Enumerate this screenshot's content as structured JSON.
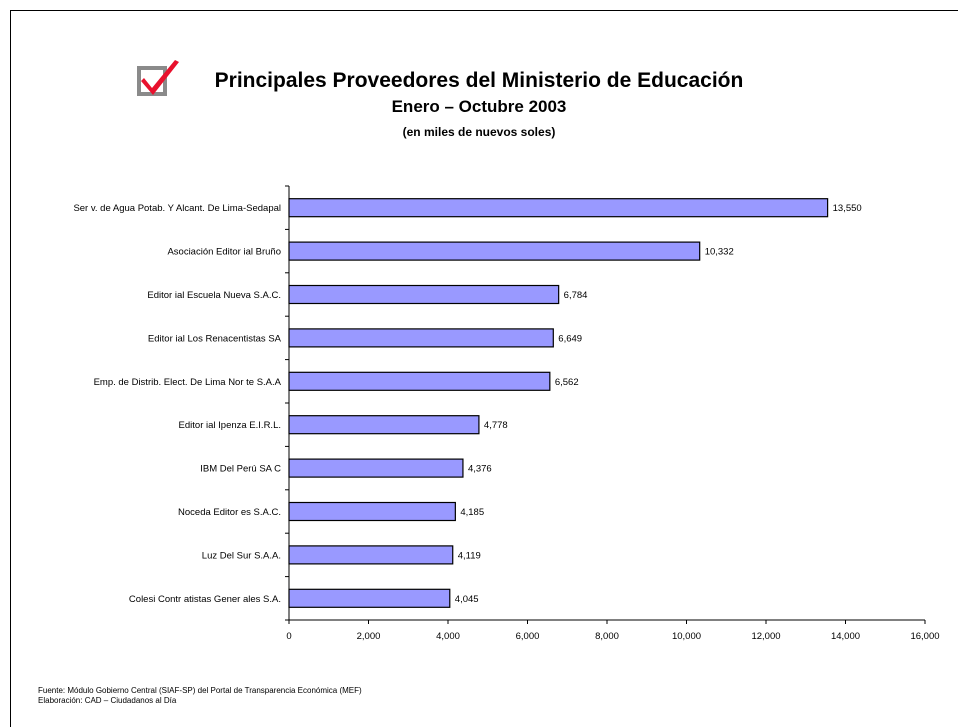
{
  "header": {
    "title": "Principales Proveedores del Ministerio de Educación",
    "subtitle": "Enero – Octubre 2003",
    "units": "(en miles de nuevos soles)",
    "icon": "checkbox-check-icon"
  },
  "footer": {
    "source": "Fuente: Módulo Gobierno Central (SIAF-SP) del Portal de Transparencia Económica (MEF)",
    "credit": "Elaboración: CAD – Ciudadanos al Día"
  },
  "colors": {
    "bar_fill": "#9999ff",
    "bar_stroke": "#000000",
    "check_red": "#e8112d",
    "box_gray": "#8a8a8a"
  },
  "chart_data": {
    "type": "bar",
    "orientation": "horizontal",
    "title": "Principales Proveedores del Ministerio de Educación",
    "categories": [
      "Ser v. de Agua Potab. Y Alcant. De Lima-Sedapal",
      "Asociación Editor ial Bruño",
      "Editor ial Escuela Nueva S.A.C.",
      "Editor ial Los Renacentistas SA",
      "Emp. de Distrib. Elect. De Lima Nor te S.A.A",
      "Editor ial Ipenza E.I.R.L.",
      "IBM Del Perú SA C",
      "Noceda Editor es S.A.C.",
      "Luz Del Sur S.A.A.",
      "Colesi Contr atistas Gener ales S.A."
    ],
    "values": [
      13550,
      10332,
      6784,
      6649,
      6562,
      4778,
      4376,
      4185,
      4119,
      4045
    ],
    "value_labels": [
      "13,550",
      "10,332",
      "6,784",
      "6,649",
      "6,562",
      "4,778",
      "4,376",
      "4,185",
      "4,119",
      "4,045"
    ],
    "xlim": [
      0,
      16000
    ],
    "xticks": [
      0,
      2000,
      4000,
      6000,
      8000,
      10000,
      12000,
      14000,
      16000
    ],
    "xtick_labels": [
      "0",
      "2,000",
      "4,000",
      "6,000",
      "8,000",
      "10,000",
      "12,000",
      "14,000",
      "16,000"
    ],
    "grid": false,
    "legend": "none"
  }
}
